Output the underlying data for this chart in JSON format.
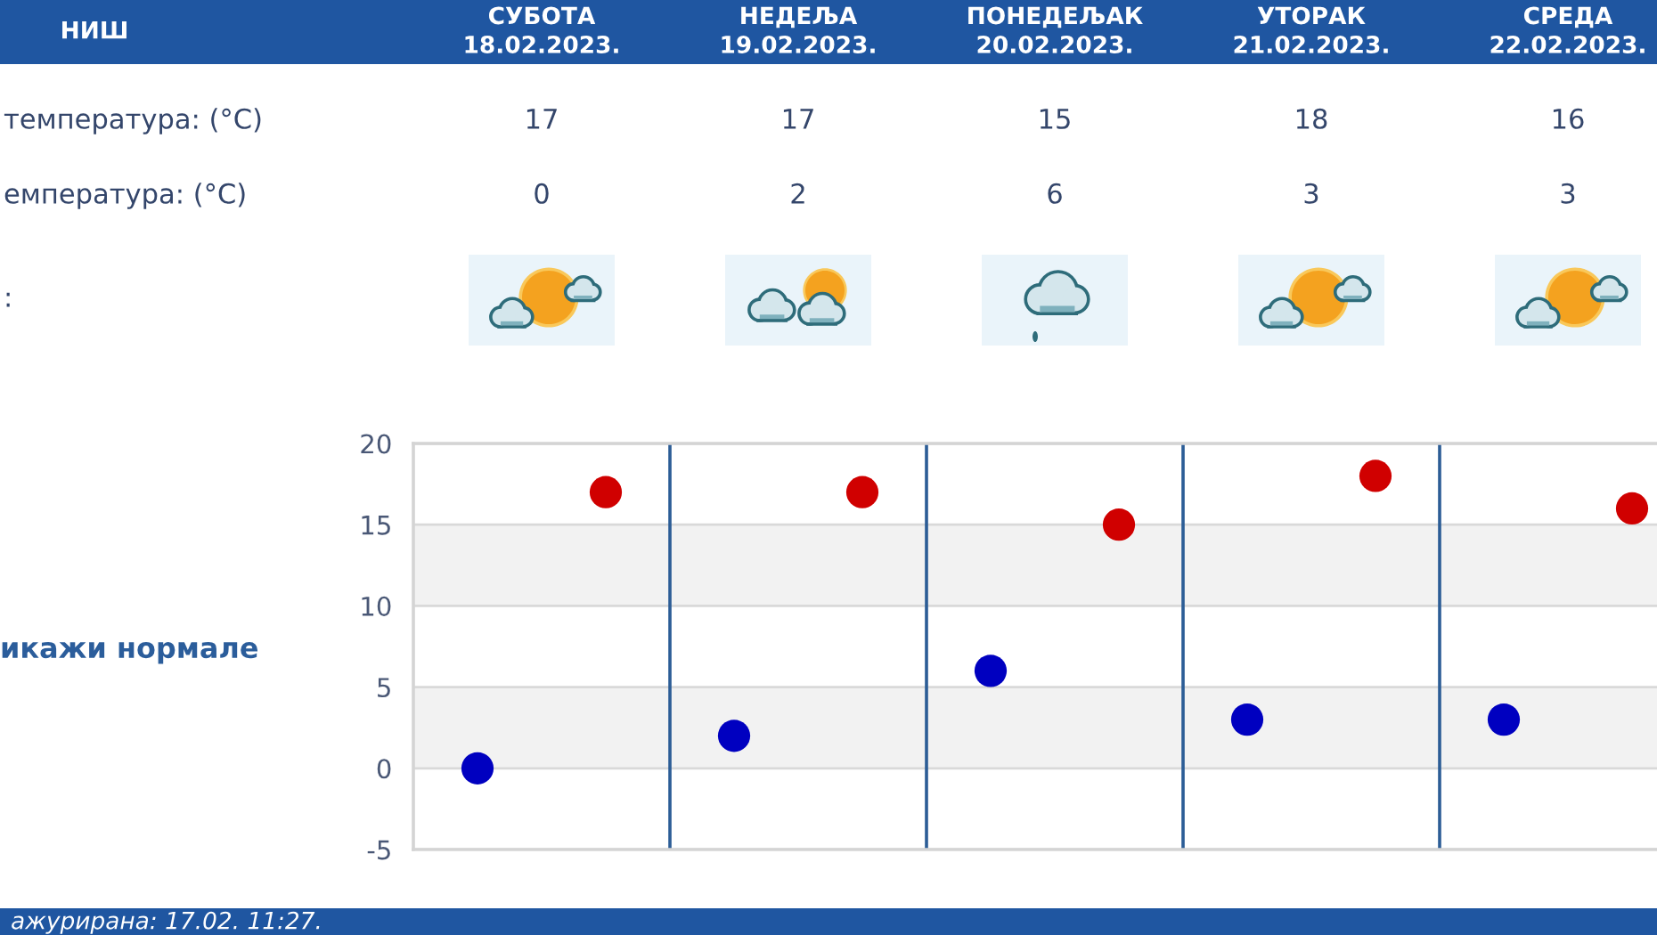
{
  "chart_data": {
    "type": "scatter",
    "title": "НИШ",
    "categories": [
      null,
      null,
      null,
      null,
      null
    ],
    "series": [
      {
        "color": "#d00000",
        "values": [
          17,
          17,
          15,
          18,
          16
        ]
      },
      {
        "color": "#0000c0",
        "values": [
          0,
          2,
          6,
          3,
          3
        ]
      }
    ],
    "ylim": [
      -5,
      20
    ],
    "yticks": [
      -5,
      0,
      5,
      10,
      15,
      20
    ],
    "tick_labels": "y",
    "grid": "y",
    "marker": "circle",
    "data_labels": true,
    "bands": [
      {
        "axis": "y",
        "from": 10,
        "to": 15,
        "color": "#f2f2f2"
      },
      {
        "axis": "y",
        "from": 0,
        "to": 5,
        "color": "#f2f2f2"
      }
    ],
    "annotations": [
      "СУБОТА\n18.02.2023.",
      "НЕДЕЉА\n19.02.2023.",
      "ПОНЕДЕЉАК\n20.02.2023.",
      "УТОРАК\n21.02.2023.",
      "СРЕДА\n22.02.2023.",
      "температура: (°C)",
      "емпература: (°C)",
      ":",
      "икажи нормале",
      "ажурирана: 17.02. 11:27."
    ]
  }
}
